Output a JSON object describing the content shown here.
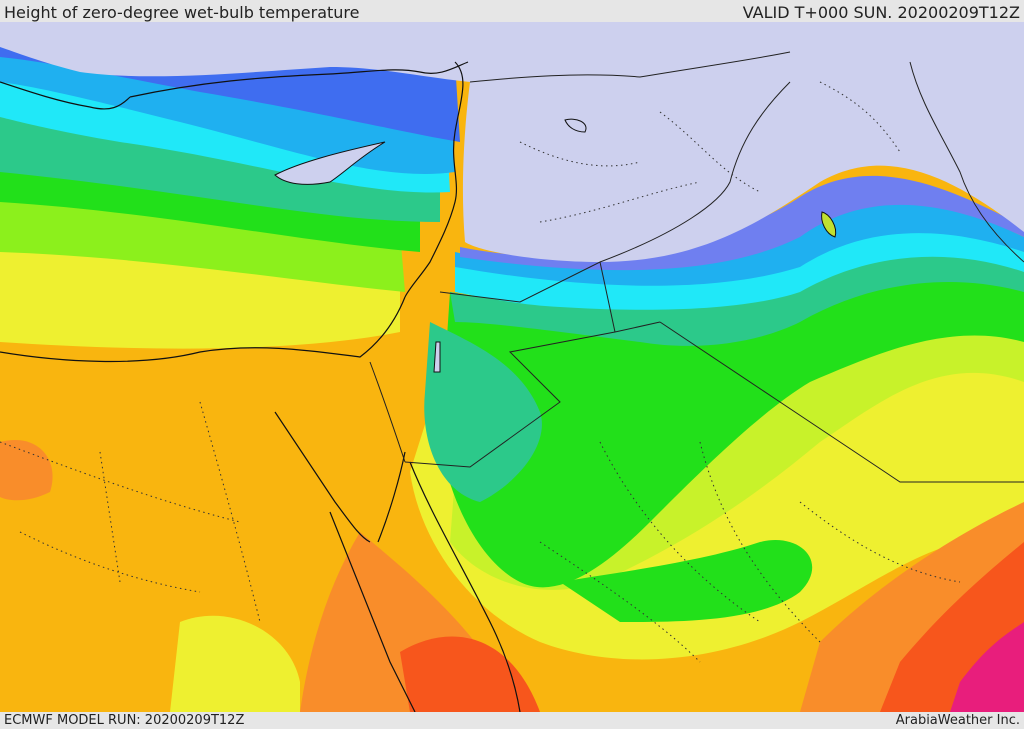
{
  "header": {
    "title": "Height of zero-degree wet-bulb temperature",
    "valid": "VALID T+000 SUN. 20200209T12Z"
  },
  "footer": {
    "model_run": "ECMWF MODEL RUN: 20200209T12Z",
    "brand": "ArabiaWeather Inc."
  },
  "palette": {
    "very_low": "#cdd0ee",
    "indigo": "#6f7ff0",
    "blue": "#3f6df0",
    "sky": "#1fb0f0",
    "cyan": "#20e8f8",
    "teal": "#2cc98a",
    "green": "#22e01a",
    "lime": "#8cf01c",
    "yellow_lime": "#c8f22a",
    "yellow": "#eef030",
    "amber": "#f9b50f",
    "orange": "#f98d2a",
    "red_orange": "#f7561c",
    "magenta": "#e81e7c"
  }
}
